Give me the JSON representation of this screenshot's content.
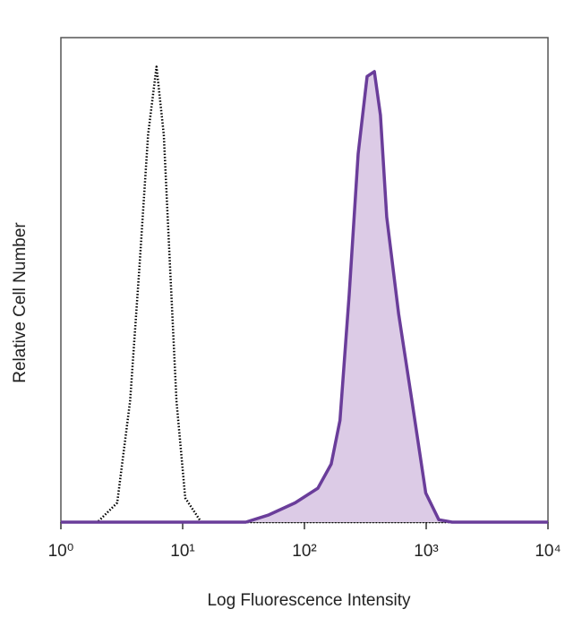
{
  "chart_data": {
    "type": "line",
    "xlabel": "Log Fluorescence Intensity",
    "ylabel": "Relative Cell Number",
    "xlog": true,
    "xlim": [
      1,
      10000
    ],
    "xticks": [
      {
        "value": 1,
        "label": "10⁰"
      },
      {
        "value": 10,
        "label": "10¹"
      },
      {
        "value": 100,
        "label": "10²"
      },
      {
        "value": 1000,
        "label": "10³"
      },
      {
        "value": 10000,
        "label": "10⁴"
      }
    ],
    "ylim": [
      0,
      100
    ],
    "series": [
      {
        "color": "#000000",
        "line_style": "dotted",
        "x": [
          1.2,
          2.0,
          2.9,
          3.7,
          4.4,
          5.2,
          6.1,
          7.0,
          7.9,
          8.9,
          10.5,
          14.2,
          10000
        ],
        "values": [
          0,
          0,
          4,
          25,
          52,
          80,
          94,
          80,
          52,
          25,
          5,
          0,
          0
        ]
      },
      {
        "color": "#6a3d9a",
        "fill": "#dccbe6",
        "line_style": "solid",
        "x": [
          1,
          10,
          20,
          33,
          51,
          84,
          129,
          166,
          196,
          233,
          276,
          327,
          375,
          421,
          474,
          594,
          764,
          991,
          1270,
          1630,
          10000
        ],
        "values": [
          0,
          0,
          0,
          0,
          1.5,
          4,
          7,
          12,
          21,
          47,
          76,
          92,
          93,
          84,
          63,
          43,
          25,
          6,
          0.5,
          0,
          0
        ]
      }
    ]
  }
}
